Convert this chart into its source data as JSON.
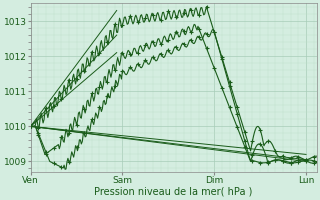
{
  "xlabel": "Pression niveau de la mer( hPa )",
  "bg_color": "#d4ede0",
  "grid_color_major": "#a8cdb8",
  "grid_color_minor": "#c0dfc8",
  "line_color": "#1a5c1a",
  "ylim": [
    1008.7,
    1013.5
  ],
  "yticks": [
    1009,
    1010,
    1011,
    1012,
    1013
  ],
  "xtick_labels": [
    "Ven",
    "Sam",
    "Dim",
    "Lun"
  ],
  "xtick_positions": [
    0,
    96,
    192,
    288
  ],
  "total_points": 300,
  "fan_lines": [
    {
      "x0": 0,
      "y0": 1010.0,
      "x1": 90,
      "y1": 1013.3
    },
    {
      "x0": 0,
      "y0": 1010.0,
      "x1": 90,
      "y1": 1012.6
    },
    {
      "x0": 0,
      "y0": 1010.0,
      "x1": 90,
      "y1": 1012.1
    },
    {
      "x0": 0,
      "y0": 1010.0,
      "x1": 288,
      "y1": 1009.2
    },
    {
      "x0": 0,
      "y0": 1010.0,
      "x1": 288,
      "y1": 1009.05
    },
    {
      "x0": 0,
      "y0": 1010.0,
      "x1": 288,
      "y1": 1009.0
    }
  ]
}
